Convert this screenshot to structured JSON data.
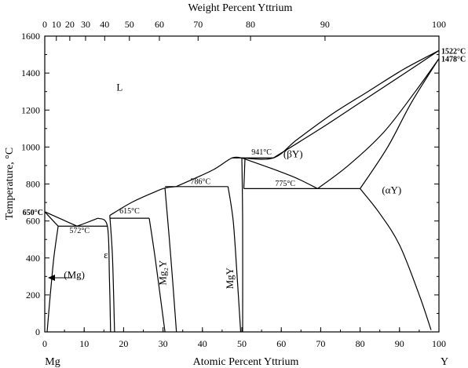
{
  "top_axis": {
    "title": "Weight Percent Yttrium",
    "ticks": [
      {
        "label": "0",
        "at": 0
      },
      {
        "label": "10",
        "at": 2.94
      },
      {
        "label": "20",
        "at": 6.35
      },
      {
        "label": "30",
        "at": 10.35
      },
      {
        "label": "40",
        "at": 15.2
      },
      {
        "label": "50",
        "at": 21.47
      },
      {
        "label": "60",
        "at": 29.08
      },
      {
        "label": "70",
        "at": 38.9
      },
      {
        "label": "80",
        "at": 52.2
      },
      {
        "label": "90",
        "at": 71.1
      },
      {
        "label": "100",
        "at": 100
      }
    ]
  },
  "bottom_axis": {
    "title": "Atomic Percent Yttrium",
    "left_element": "Mg",
    "right_element": "Y",
    "ticks": [
      "0",
      "10",
      "20",
      "30",
      "40",
      "50",
      "60",
      "70",
      "80",
      "90",
      "100"
    ],
    "values": [
      0,
      10,
      20,
      30,
      40,
      50,
      60,
      70,
      80,
      90,
      100
    ]
  },
  "left_axis": {
    "title": "Temperature, °C",
    "ticks": [
      "0",
      "200",
      "400",
      "600",
      "800",
      "1000",
      "1200",
      "1400",
      "1600"
    ],
    "values": [
      0,
      200,
      400,
      600,
      800,
      1000,
      1200,
      1400,
      1600
    ]
  },
  "phase_labels": [
    {
      "text": "L",
      "x": 19,
      "t": 1305
    },
    {
      "text": "(βY)",
      "x": 63,
      "t": 945
    },
    {
      "text": "(αY)",
      "x": 88,
      "t": 750
    },
    {
      "text": "ε",
      "x": 15.5,
      "t": 400
    },
    {
      "text": "(Mg)",
      "x": 7.5,
      "t": 290
    }
  ],
  "rotated_labels": [
    {
      "text": "Mg₂Y",
      "x": 30.8,
      "t": 320
    },
    {
      "text": "MgY",
      "x": 47.8,
      "t": 290
    }
  ],
  "temperature_labels": [
    {
      "text": "572°C",
      "x": 8.8,
      "t": 535
    },
    {
      "text": "615°C",
      "x": 21.5,
      "t": 640
    },
    {
      "text": "786°C",
      "x": 39.5,
      "t": 800
    },
    {
      "text": "775°C",
      "x": 61,
      "t": 790
    },
    {
      "text": "941°C",
      "x": 55,
      "t": 960
    }
  ],
  "edge_temperature_labels": [
    {
      "text": "650°C",
      "side": "left",
      "t": 650
    },
    {
      "text": "1522°C",
      "side": "right",
      "t": 1522
    },
    {
      "text": "1478°C",
      "side": "right",
      "t": 1478
    }
  ],
  "chart_data": {
    "type": "phase-diagram",
    "xlim": [
      0,
      100
    ],
    "ylim": [
      0,
      1600
    ],
    "lines": [
      {
        "name": "liquidus-mg",
        "points": [
          [
            0,
            650
          ],
          [
            4,
            612
          ],
          [
            8.2,
            572
          ]
        ]
      },
      {
        "name": "liquidus-eps",
        "points": [
          [
            8.2,
            572
          ],
          [
            10.5,
            590
          ],
          [
            13.5,
            615
          ]
        ]
      },
      {
        "name": "liquidus-mg2y",
        "points": [
          [
            16.5,
            630
          ],
          [
            22,
            700
          ],
          [
            28,
            758
          ],
          [
            30.5,
            778
          ],
          [
            33.3,
            786
          ]
        ]
      },
      {
        "name": "liquidus-mgy",
        "points": [
          [
            33.3,
            786
          ],
          [
            38,
            830
          ],
          [
            43,
            880
          ],
          [
            47.5,
            941
          ],
          [
            50,
            941
          ]
        ]
      },
      {
        "name": "liquidus-y",
        "points": [
          [
            50,
            941
          ],
          [
            58,
            941
          ],
          [
            64,
            1040
          ],
          [
            73,
            1180
          ],
          [
            82,
            1300
          ],
          [
            91,
            1420
          ],
          [
            100,
            1522
          ]
        ]
      },
      {
        "name": "beta-liquidus-inner",
        "points": [
          [
            58,
            941
          ],
          [
            70,
            1100
          ],
          [
            80,
            1240
          ],
          [
            90,
            1380
          ],
          [
            100,
            1522
          ]
        ]
      },
      {
        "name": "beta-solvus-left",
        "points": [
          [
            50,
            941
          ],
          [
            58,
            880
          ],
          [
            64,
            830
          ],
          [
            69.2,
            775
          ]
        ]
      },
      {
        "name": "beta-solvus-right",
        "points": [
          [
            69.2,
            775
          ],
          [
            77,
            900
          ],
          [
            86,
            1080
          ],
          [
            94,
            1300
          ],
          [
            100,
            1478
          ]
        ]
      },
      {
        "name": "beta-alpha-boundary",
        "points": [
          [
            80,
            775
          ],
          [
            87,
            1000
          ],
          [
            93,
            1240
          ],
          [
            100,
            1478
          ]
        ]
      },
      {
        "name": "mg-solvus-top",
        "points": [
          [
            0,
            650
          ],
          [
            3.4,
            572
          ]
        ]
      },
      {
        "name": "mg-solvus",
        "points": [
          [
            3.4,
            572
          ],
          [
            2.3,
            400
          ],
          [
            1.4,
            200
          ],
          [
            0.6,
            0
          ]
        ]
      },
      {
        "name": "eps-left",
        "points": [
          [
            13.5,
            615
          ],
          [
            15.9,
            572
          ],
          [
            16.4,
            300
          ],
          [
            16.7,
            0
          ]
        ]
      },
      {
        "name": "eps-right",
        "points": [
          [
            16.5,
            630
          ],
          [
            17.2,
            400
          ],
          [
            17.7,
            0
          ]
        ]
      },
      {
        "name": "mg2y-left",
        "points": [
          [
            26.5,
            615
          ],
          [
            28,
            400
          ],
          [
            30.5,
            0
          ]
        ]
      },
      {
        "name": "mg2y-right",
        "points": [
          [
            30.5,
            778
          ],
          [
            32,
            400
          ],
          [
            33.4,
            0
          ]
        ]
      },
      {
        "name": "mgy-left",
        "points": [
          [
            46.5,
            786
          ],
          [
            47.8,
            600
          ],
          [
            48.8,
            300
          ],
          [
            49.7,
            0
          ]
        ]
      },
      {
        "name": "mgy-right",
        "points": [
          [
            50,
            941
          ],
          [
            50.2,
            600
          ],
          [
            50.2,
            0
          ]
        ]
      },
      {
        "name": "mgy-right-solvus",
        "points": [
          [
            50.8,
            941
          ],
          [
            50.5,
            775
          ]
        ]
      },
      {
        "name": "alpha-solvus",
        "points": [
          [
            80,
            775
          ],
          [
            85,
            640
          ],
          [
            90,
            470
          ],
          [
            95,
            200
          ],
          [
            98,
            10
          ]
        ]
      }
    ],
    "invariant_lines": [
      {
        "t": 572,
        "x1": 3.4,
        "x2": 15.9
      },
      {
        "t": 615,
        "x1": 16.5,
        "x2": 26.5
      },
      {
        "t": 786,
        "x1": 30.5,
        "x2": 46.5
      },
      {
        "t": 775,
        "x1": 50.5,
        "x2": 80
      },
      {
        "t": 941,
        "x1": 47.5,
        "x2": 58
      }
    ]
  }
}
